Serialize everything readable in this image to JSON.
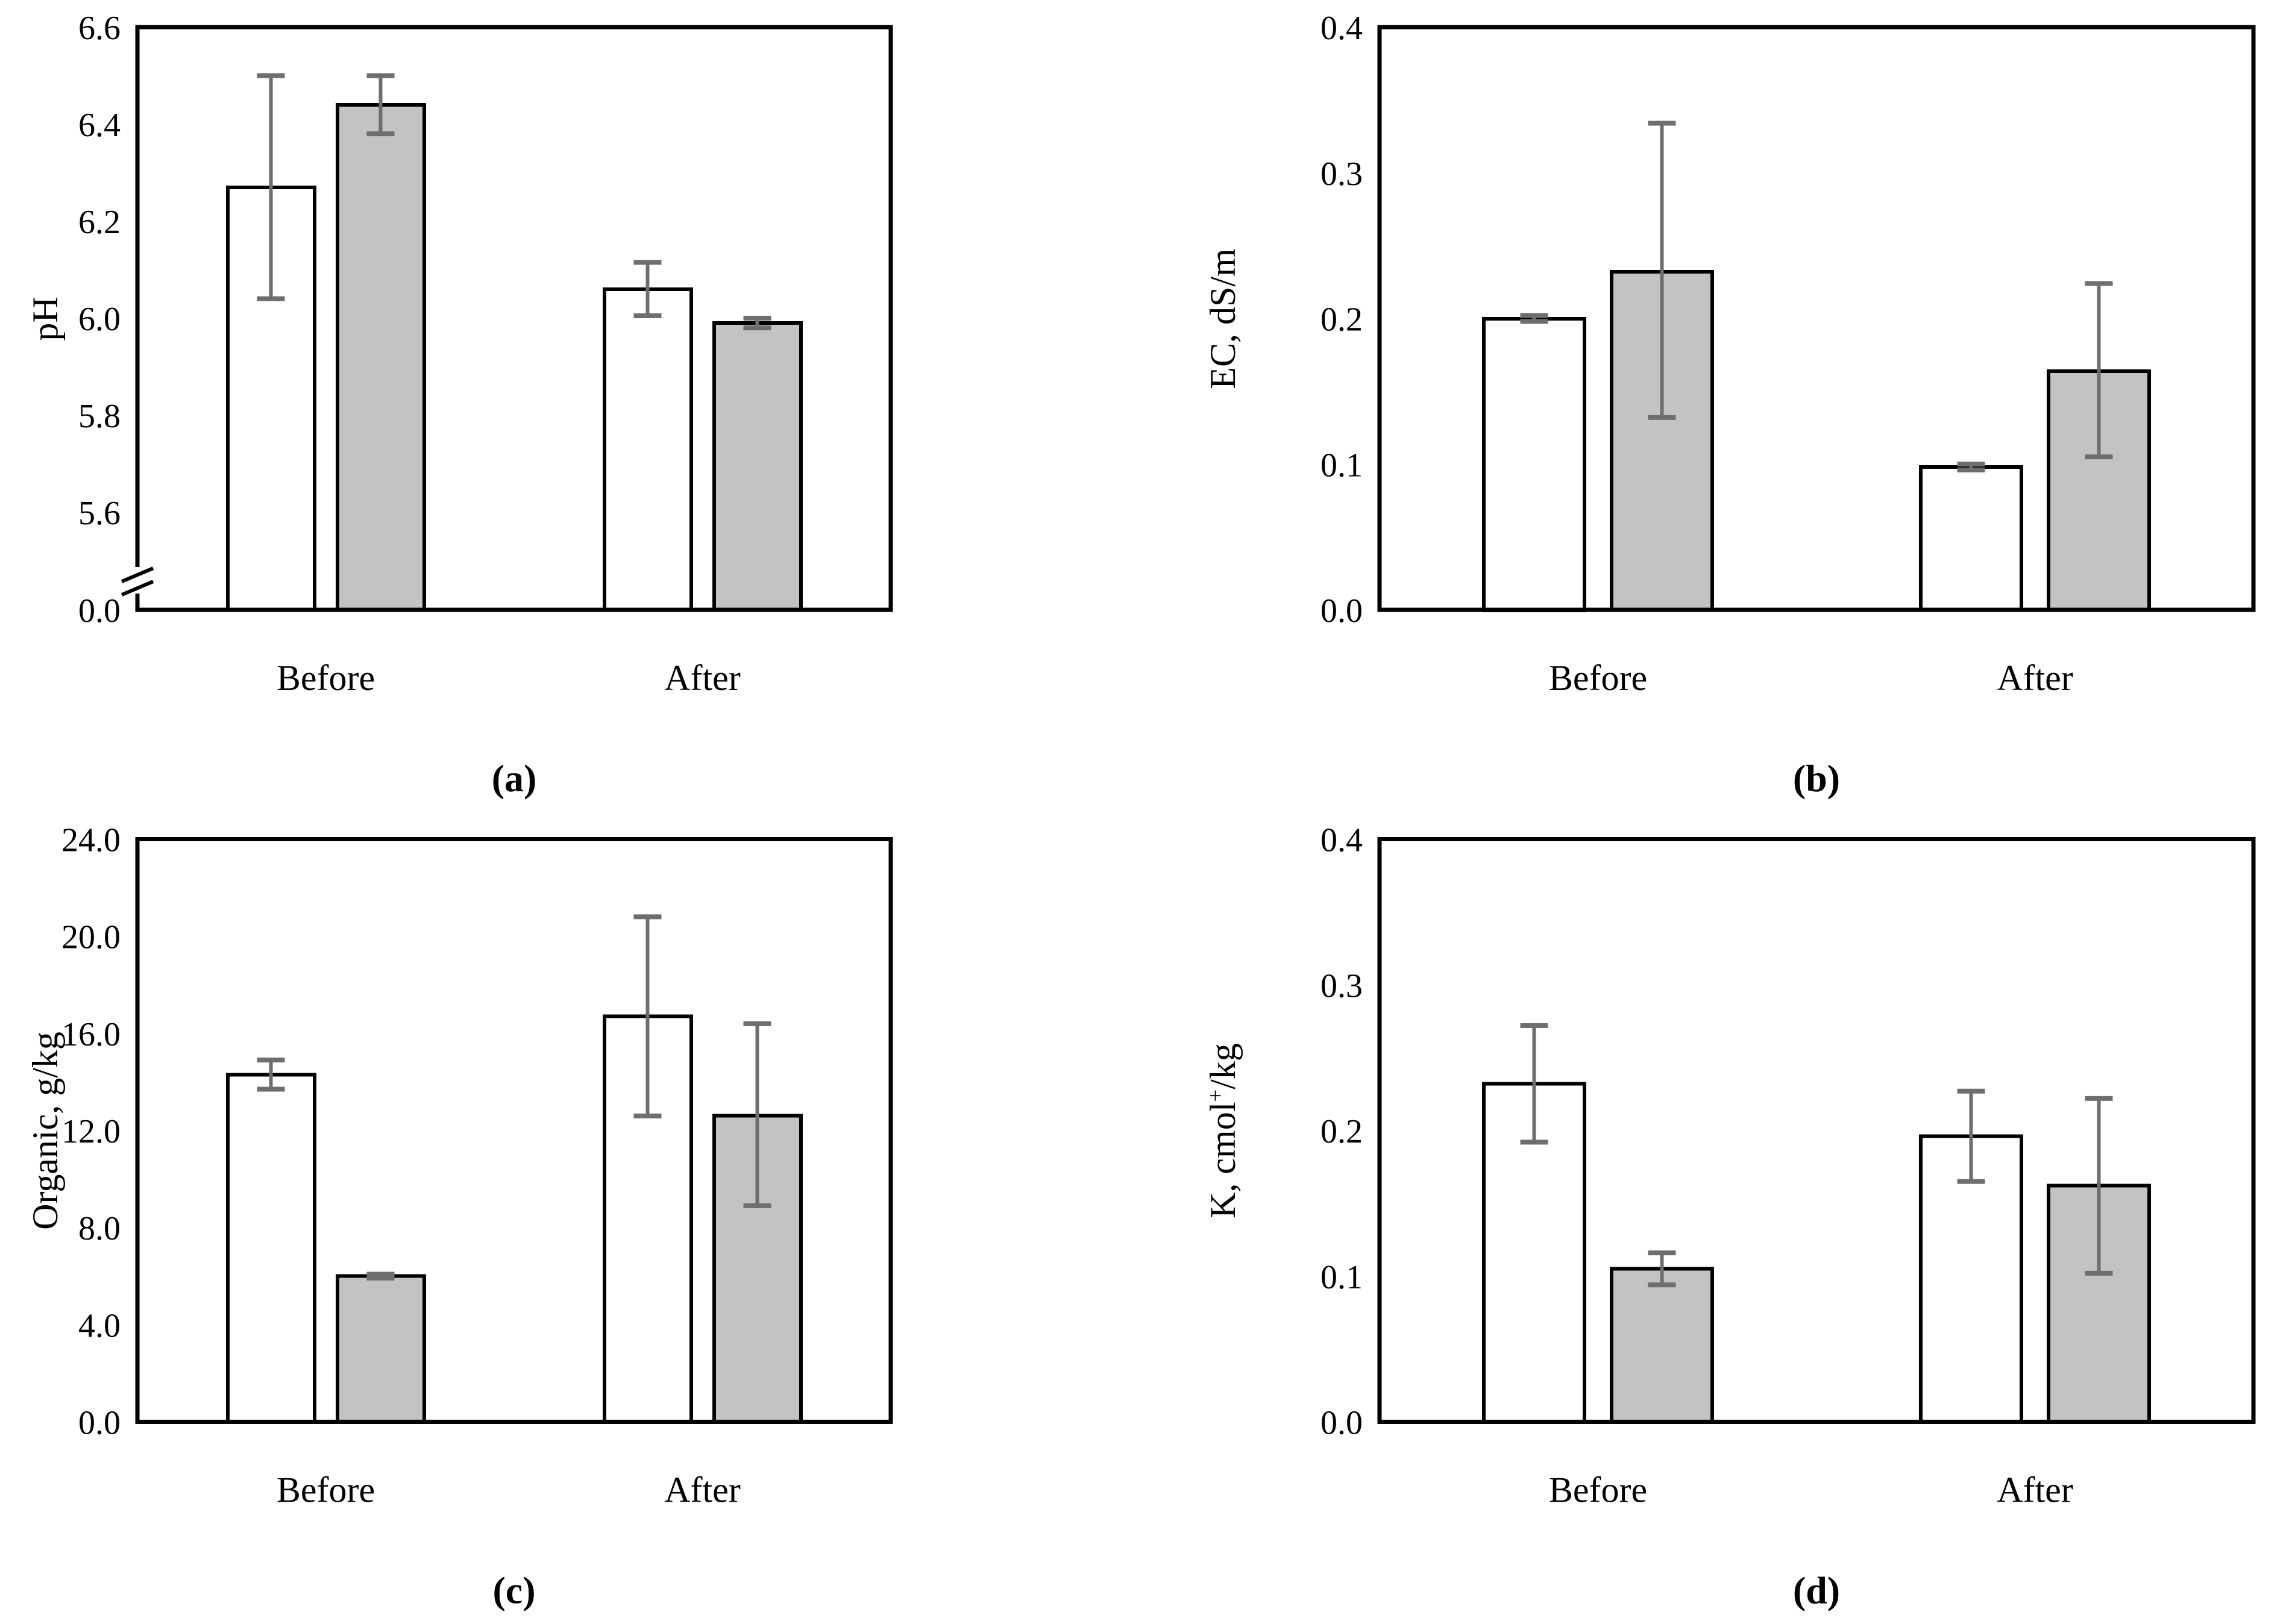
{
  "figure": {
    "background": "#ffffff",
    "bar_outline_color": "#000000",
    "error_bar_color": "#6e6e6e",
    "series_styles": [
      {
        "name": "open-white-bar",
        "fill": "#ffffff"
      },
      {
        "name": "shaded-gray-bar",
        "fill": "#c3c3c3"
      }
    ]
  },
  "chart_data": [
    {
      "id": "a",
      "caption": "(a)",
      "type": "bar",
      "ylabel": "pH",
      "xlabel": "",
      "categories": [
        "Before",
        "After"
      ],
      "grid": false,
      "legend": "none",
      "y_axis": {
        "broken": true,
        "upper_ticks": [
          "6.6",
          "6.4",
          "6.2",
          "6.0",
          "5.8",
          "5.6"
        ],
        "upper_tick_values": [
          6.6,
          6.4,
          6.2,
          6.0,
          5.8,
          5.6
        ],
        "bottom_label": "0.0",
        "ylim_upper_segment": [
          5.6,
          6.6
        ]
      },
      "series": [
        {
          "name": "open-white-bar",
          "values": [
            6.27,
            6.06
          ],
          "err_lo": [
            0.23,
            0.055
          ],
          "err_hi": [
            0.23,
            0.055
          ]
        },
        {
          "name": "shaded-gray-bar",
          "values": [
            6.44,
            5.99
          ],
          "err_lo": [
            0.06,
            0.01
          ],
          "err_hi": [
            0.06,
            0.01
          ]
        }
      ]
    },
    {
      "id": "b",
      "caption": "(b)",
      "type": "bar",
      "ylabel": "EC, dS/m",
      "xlabel": "",
      "categories": [
        "Before",
        "After"
      ],
      "grid": false,
      "legend": "none",
      "y_axis": {
        "broken": false,
        "ticks": [
          "0.4",
          "0.3",
          "0.2",
          "0.1",
          "0.0"
        ],
        "tick_values": [
          0.4,
          0.3,
          0.2,
          0.1,
          0.0
        ],
        "ylim": [
          0.0,
          0.4
        ]
      },
      "series": [
        {
          "name": "open-white-bar",
          "values": [
            0.2,
            0.098
          ],
          "err_lo": [
            0.002,
            0.002
          ],
          "err_hi": [
            0.002,
            0.002
          ]
        },
        {
          "name": "shaded-gray-bar",
          "values": [
            0.232,
            0.164
          ],
          "err_lo": [
            0.1,
            0.059
          ],
          "err_hi": [
            0.102,
            0.06
          ]
        }
      ]
    },
    {
      "id": "c",
      "caption": "(c)",
      "type": "bar",
      "ylabel": "Organic, g/kg",
      "xlabel": "",
      "categories": [
        "Before",
        "After"
      ],
      "grid": false,
      "legend": "none",
      "y_axis": {
        "broken": false,
        "ticks": [
          "24.0",
          "20.0",
          "16.0",
          "12.0",
          "8.0",
          "4.0",
          "0.0"
        ],
        "tick_values": [
          24.0,
          20.0,
          16.0,
          12.0,
          8.0,
          4.0,
          0.0
        ],
        "ylim": [
          0.0,
          24.0
        ]
      },
      "series": [
        {
          "name": "open-white-bar",
          "values": [
            14.3,
            16.7
          ],
          "err_lo": [
            0.6,
            4.1
          ],
          "err_hi": [
            0.6,
            4.1
          ]
        },
        {
          "name": "shaded-gray-bar",
          "values": [
            6.0,
            12.6
          ],
          "err_lo": [
            0.08,
            3.7
          ],
          "err_hi": [
            0.08,
            3.8
          ]
        }
      ]
    },
    {
      "id": "d",
      "caption": "(d)",
      "type": "bar",
      "ylabel": "K, cmol⁺/kg",
      "xlabel": "",
      "categories": [
        "Before",
        "After"
      ],
      "grid": false,
      "legend": "none",
      "y_axis": {
        "broken": false,
        "ticks": [
          "0.4",
          "0.3",
          "0.2",
          "0.1",
          "0.0"
        ],
        "tick_values": [
          0.4,
          0.3,
          0.2,
          0.1,
          0.0
        ],
        "ylim": [
          0.0,
          0.4
        ]
      },
      "series": [
        {
          "name": "open-white-bar",
          "values": [
            0.232,
            0.196
          ],
          "err_lo": [
            0.04,
            0.031
          ],
          "err_hi": [
            0.04,
            0.031
          ]
        },
        {
          "name": "shaded-gray-bar",
          "values": [
            0.105,
            0.162
          ],
          "err_lo": [
            0.011,
            0.06
          ],
          "err_hi": [
            0.011,
            0.06
          ]
        }
      ]
    }
  ]
}
